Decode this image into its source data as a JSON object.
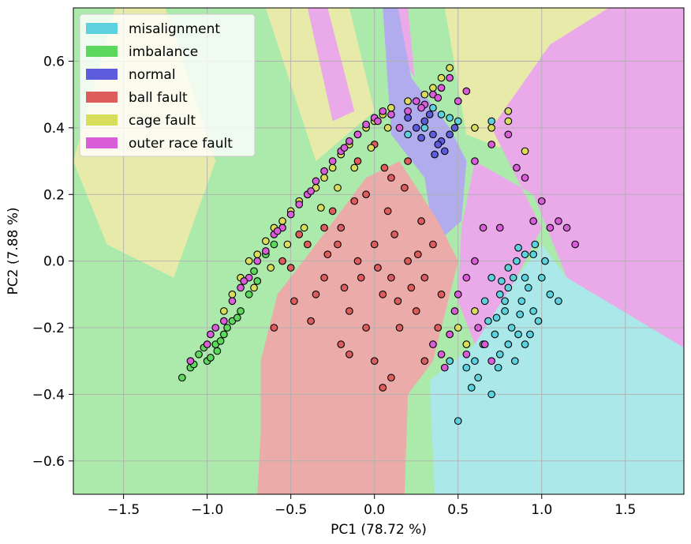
{
  "chart_data": {
    "type": "scatter",
    "title": "",
    "xlabel": "PC1 (78.72 %)",
    "ylabel": "PC2 (7.88 %)",
    "xlim": [
      -1.8,
      1.85
    ],
    "ylim": [
      -0.7,
      0.76
    ],
    "xticks": [
      -1.5,
      -1.0,
      -0.5,
      0.0,
      0.5,
      1.0,
      1.5
    ],
    "xtick_labels": [
      "−1.5",
      "−1.0",
      "−0.5",
      "0.0",
      "0.5",
      "1.0",
      "1.5"
    ],
    "yticks": [
      -0.6,
      -0.4,
      -0.2,
      0.0,
      0.2,
      0.4,
      0.6
    ],
    "ytick_labels": [
      "−0.6",
      "−0.4",
      "−0.2",
      "0.0",
      "0.2",
      "0.4",
      "0.6"
    ],
    "grid": true,
    "legend_position": "top-left",
    "background": "decision regions of a classifier",
    "series": [
      {
        "name": "misalignment",
        "color": "#5bd2dd",
        "region_color": "#abe8ea",
        "points": [
          [
            0.7,
            -0.05
          ],
          [
            0.75,
            -0.1
          ],
          [
            0.8,
            -0.02
          ],
          [
            0.85,
            0.0
          ],
          [
            0.9,
            -0.05
          ],
          [
            0.95,
            0.02
          ],
          [
            0.78,
            -0.15
          ],
          [
            0.82,
            -0.2
          ],
          [
            0.88,
            -0.12
          ],
          [
            0.92,
            -0.08
          ],
          [
            0.72,
            -0.22
          ],
          [
            0.68,
            -0.18
          ],
          [
            0.95,
            -0.15
          ],
          [
            1.0,
            -0.05
          ],
          [
            1.02,
            0.0
          ],
          [
            0.86,
            0.04
          ],
          [
            0.8,
            -0.25
          ],
          [
            0.75,
            -0.28
          ],
          [
            0.65,
            -0.25
          ],
          [
            0.6,
            -0.3
          ],
          [
            0.55,
            -0.32
          ],
          [
            0.62,
            -0.35
          ],
          [
            0.7,
            -0.4
          ],
          [
            0.58,
            -0.38
          ],
          [
            0.5,
            -0.48
          ],
          [
            0.45,
            -0.3
          ],
          [
            0.98,
            -0.18
          ],
          [
            1.05,
            -0.1
          ],
          [
            1.1,
            -0.12
          ],
          [
            0.9,
            -0.25
          ],
          [
            0.96,
            0.05
          ],
          [
            0.84,
            -0.3
          ],
          [
            0.74,
            -0.32
          ],
          [
            0.66,
            -0.12
          ],
          [
            0.8,
            -0.08
          ],
          [
            0.87,
            -0.16
          ],
          [
            0.93,
            -0.22
          ],
          [
            0.76,
            -0.06
          ],
          [
            0.7,
            0.42
          ],
          [
            0.45,
            0.43
          ],
          [
            0.3,
            0.4
          ],
          [
            0.4,
            0.44
          ],
          [
            0.2,
            0.38
          ],
          [
            0.35,
            0.46
          ],
          [
            0.5,
            0.42
          ],
          [
            0.9,
            0.02
          ],
          [
            0.83,
            -0.05
          ],
          [
            0.78,
            -0.12
          ],
          [
            0.73,
            -0.17
          ],
          [
            0.86,
            -0.22
          ]
        ]
      },
      {
        "name": "imbalance",
        "color": "#5cd95c",
        "region_color": "#abeaab",
        "points": [
          [
            -1.15,
            -0.35
          ],
          [
            -1.1,
            -0.32
          ],
          [
            -1.05,
            -0.28
          ],
          [
            -1.0,
            -0.3
          ],
          [
            -0.95,
            -0.25
          ],
          [
            -0.9,
            -0.22
          ],
          [
            -0.85,
            -0.18
          ],
          [
            -0.8,
            -0.15
          ],
          [
            -0.88,
            -0.2
          ],
          [
            -1.02,
            -0.26
          ],
          [
            -0.92,
            -0.24
          ],
          [
            -0.75,
            -0.1
          ],
          [
            -0.7,
            -0.06
          ],
          [
            -0.98,
            -0.29
          ],
          [
            -1.08,
            -0.31
          ],
          [
            -0.82,
            -0.17
          ],
          [
            -0.65,
            0.02
          ],
          [
            -0.6,
            0.05
          ],
          [
            -0.72,
            -0.03
          ],
          [
            -0.94,
            -0.27
          ]
        ]
      },
      {
        "name": "normal",
        "color": "#5c5cdd",
        "region_color": "#b0acee",
        "points": [
          [
            0.3,
            0.42
          ],
          [
            0.35,
            0.38
          ],
          [
            0.25,
            0.4
          ],
          [
            0.4,
            0.36
          ],
          [
            0.33,
            0.44
          ],
          [
            0.45,
            0.38
          ],
          [
            0.38,
            0.35
          ],
          [
            0.28,
            0.37
          ],
          [
            0.42,
            0.33
          ],
          [
            0.2,
            0.43
          ],
          [
            0.36,
            0.32
          ],
          [
            0.48,
            0.4
          ]
        ]
      },
      {
        "name": "ball fault",
        "color": "#dd5c5c",
        "region_color": "#ebaba9",
        "points": [
          [
            -0.5,
            -0.02
          ],
          [
            -0.4,
            0.05
          ],
          [
            -0.3,
            -0.05
          ],
          [
            -0.2,
            0.1
          ],
          [
            -0.1,
            0.0
          ],
          [
            0.0,
            0.05
          ],
          [
            0.1,
            -0.05
          ],
          [
            0.2,
            0.0
          ],
          [
            -0.35,
            -0.1
          ],
          [
            -0.15,
            -0.15
          ],
          [
            0.05,
            -0.1
          ],
          [
            0.15,
            -0.2
          ],
          [
            0.25,
            -0.15
          ],
          [
            0.3,
            -0.05
          ],
          [
            0.35,
            0.05
          ],
          [
            -0.25,
            0.15
          ],
          [
            -0.05,
            0.2
          ],
          [
            0.1,
            0.25
          ],
          [
            0.2,
            0.3
          ],
          [
            0.0,
            0.35
          ],
          [
            -0.1,
            0.3
          ],
          [
            -0.2,
            -0.25
          ],
          [
            0.0,
            -0.3
          ],
          [
            0.1,
            -0.35
          ],
          [
            -0.15,
            -0.28
          ],
          [
            0.05,
            -0.38
          ],
          [
            -0.45,
            0.08
          ],
          [
            -0.38,
            -0.18
          ],
          [
            0.28,
            0.12
          ],
          [
            0.4,
            -0.1
          ],
          [
            0.38,
            -0.2
          ],
          [
            0.3,
            -0.3
          ],
          [
            -0.08,
            -0.05
          ],
          [
            0.12,
            0.08
          ],
          [
            -0.28,
            0.02
          ],
          [
            -0.18,
            -0.08
          ],
          [
            0.22,
            -0.08
          ],
          [
            0.08,
            0.15
          ],
          [
            -0.05,
            -0.2
          ],
          [
            0.18,
            0.22
          ],
          [
            -0.6,
            -0.2
          ],
          [
            -0.55,
            0.0
          ],
          [
            -0.48,
            -0.12
          ],
          [
            -0.3,
            0.1
          ],
          [
            0.02,
            -0.02
          ],
          [
            0.14,
            -0.12
          ],
          [
            -0.22,
            0.05
          ],
          [
            0.26,
            0.02
          ],
          [
            -0.12,
            0.18
          ],
          [
            0.06,
            0.28
          ]
        ]
      },
      {
        "name": "cage fault",
        "color": "#d9dd5c",
        "region_color": "#e8eaaa",
        "points": [
          [
            -0.9,
            -0.15
          ],
          [
            -0.85,
            -0.1
          ],
          [
            -0.8,
            -0.05
          ],
          [
            -0.75,
            0.0
          ],
          [
            -0.7,
            0.02
          ],
          [
            -0.65,
            0.06
          ],
          [
            -0.6,
            0.1
          ],
          [
            -0.55,
            0.12
          ],
          [
            -0.5,
            0.15
          ],
          [
            -0.45,
            0.18
          ],
          [
            -0.4,
            0.2
          ],
          [
            -0.35,
            0.22
          ],
          [
            -0.3,
            0.25
          ],
          [
            -0.25,
            0.28
          ],
          [
            -0.2,
            0.32
          ],
          [
            -0.15,
            0.35
          ],
          [
            -0.1,
            0.38
          ],
          [
            -0.05,
            0.4
          ],
          [
            0.0,
            0.42
          ],
          [
            0.05,
            0.44
          ],
          [
            0.1,
            0.46
          ],
          [
            0.2,
            0.48
          ],
          [
            0.3,
            0.5
          ],
          [
            0.35,
            0.52
          ],
          [
            0.4,
            0.55
          ],
          [
            0.45,
            0.58
          ],
          [
            0.6,
            0.4
          ],
          [
            0.7,
            0.4
          ],
          [
            0.8,
            0.45
          ],
          [
            0.8,
            0.42
          ],
          [
            0.9,
            0.33
          ],
          [
            -0.72,
            -0.08
          ],
          [
            -0.62,
            -0.02
          ],
          [
            -0.52,
            0.05
          ],
          [
            -0.42,
            0.1
          ],
          [
            -0.32,
            0.16
          ],
          [
            -0.22,
            0.22
          ],
          [
            -0.12,
            0.28
          ],
          [
            -0.02,
            0.34
          ],
          [
            0.08,
            0.4
          ],
          [
            0.6,
            -0.15
          ],
          [
            0.55,
            -0.25
          ],
          [
            0.5,
            -0.2
          ]
        ]
      },
      {
        "name": "outer race fault",
        "color": "#d95cd9",
        "region_color": "#eaaae9",
        "points": [
          [
            -1.1,
            -0.3
          ],
          [
            -1.0,
            -0.25
          ],
          [
            -0.95,
            -0.2
          ],
          [
            -0.9,
            -0.18
          ],
          [
            -0.85,
            -0.12
          ],
          [
            -0.8,
            -0.08
          ],
          [
            -0.75,
            -0.05
          ],
          [
            -0.7,
            0.0
          ],
          [
            -0.65,
            0.03
          ],
          [
            -0.6,
            0.08
          ],
          [
            -0.55,
            0.1
          ],
          [
            -0.5,
            0.14
          ],
          [
            -0.45,
            0.17
          ],
          [
            -0.4,
            0.2
          ],
          [
            -0.35,
            0.24
          ],
          [
            -0.3,
            0.27
          ],
          [
            -0.25,
            0.3
          ],
          [
            -0.2,
            0.33
          ],
          [
            -0.15,
            0.36
          ],
          [
            -0.1,
            0.38
          ],
          [
            -0.05,
            0.41
          ],
          [
            0.0,
            0.43
          ],
          [
            0.05,
            0.45
          ],
          [
            0.1,
            0.44
          ],
          [
            0.15,
            0.4
          ],
          [
            0.2,
            0.45
          ],
          [
            0.25,
            0.48
          ],
          [
            0.3,
            0.47
          ],
          [
            0.35,
            0.5
          ],
          [
            0.4,
            0.52
          ],
          [
            0.45,
            0.55
          ],
          [
            0.5,
            0.48
          ],
          [
            0.55,
            0.51
          ],
          [
            0.6,
            0.3
          ],
          [
            0.7,
            0.35
          ],
          [
            0.8,
            0.38
          ],
          [
            0.85,
            0.28
          ],
          [
            0.9,
            0.25
          ],
          [
            1.0,
            0.18
          ],
          [
            1.1,
            0.12
          ],
          [
            1.15,
            0.1
          ],
          [
            1.2,
            0.05
          ],
          [
            1.05,
            0.1
          ],
          [
            0.95,
            0.12
          ],
          [
            0.65,
            0.1
          ],
          [
            0.6,
            0.0
          ],
          [
            0.55,
            -0.05
          ],
          [
            0.5,
            -0.1
          ],
          [
            0.48,
            -0.15
          ],
          [
            0.45,
            -0.22
          ],
          [
            0.4,
            -0.28
          ],
          [
            0.35,
            -0.25
          ],
          [
            0.42,
            -0.32
          ],
          [
            0.55,
            -0.28
          ],
          [
            0.62,
            -0.2
          ],
          [
            0.66,
            -0.25
          ],
          [
            0.7,
            -0.3
          ],
          [
            0.75,
            0.1
          ],
          [
            -0.98,
            -0.22
          ],
          [
            -0.78,
            -0.06
          ],
          [
            -0.58,
            0.09
          ],
          [
            -0.38,
            0.21
          ],
          [
            -0.18,
            0.34
          ],
          [
            0.02,
            0.42
          ],
          [
            0.28,
            0.46
          ],
          [
            0.38,
            0.49
          ]
        ]
      }
    ]
  }
}
